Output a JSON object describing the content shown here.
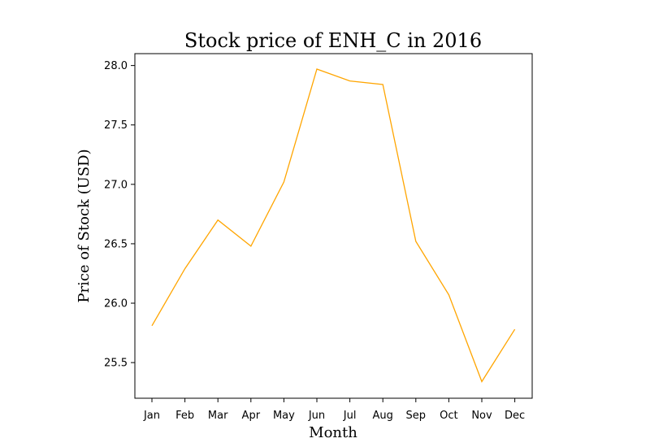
{
  "chart_data": {
    "type": "line",
    "title": "Stock price of ENH_C in 2016",
    "xlabel": "Month",
    "ylabel": "Price of Stock (USD)",
    "categories": [
      "Jan",
      "Feb",
      "Mar",
      "Apr",
      "May",
      "Jun",
      "Jul",
      "Aug",
      "Sep",
      "Oct",
      "Nov",
      "Dec"
    ],
    "series": [
      {
        "values": [
          25.81,
          26.29,
          26.7,
          26.48,
          27.02,
          27.97,
          27.87,
          27.84,
          26.52,
          26.07,
          25.34,
          25.78
        ]
      }
    ],
    "ylim": [
      25.2,
      28.1
    ],
    "yticks": [
      25.5,
      26.0,
      26.5,
      27.0,
      27.5,
      28.0
    ],
    "ytick_labels": [
      "25.5",
      "26.0",
      "26.5",
      "27.0",
      "27.5",
      "28.0"
    ],
    "grid": false,
    "line_color": "#FFA500"
  }
}
